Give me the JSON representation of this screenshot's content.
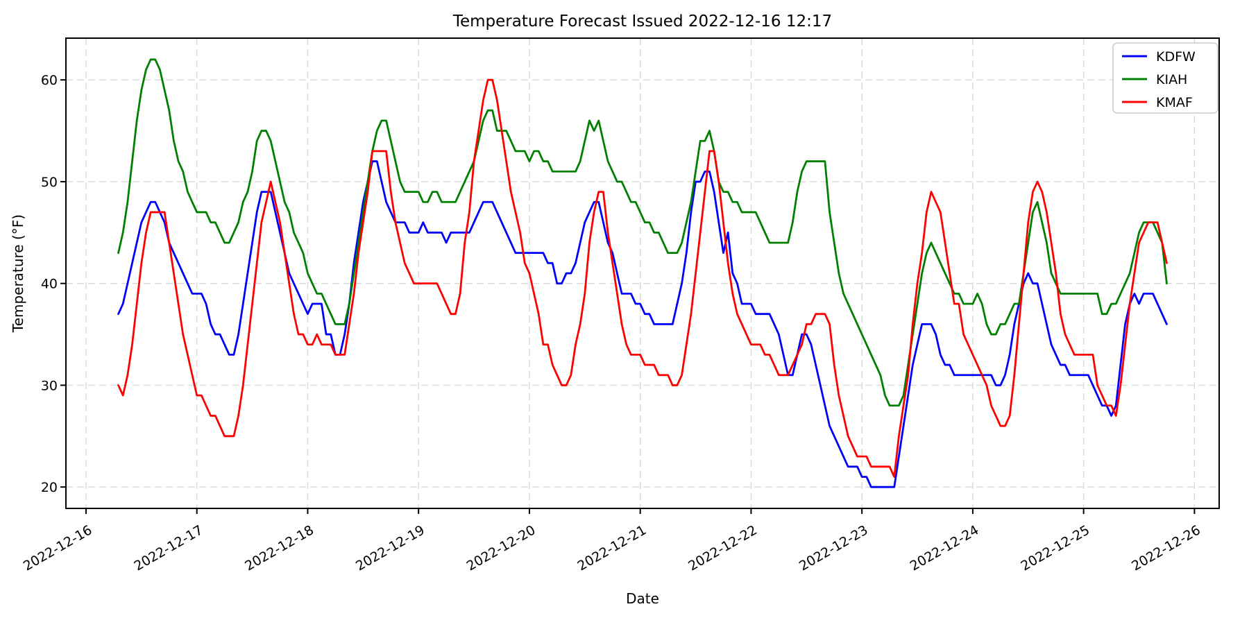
{
  "title": "Temperature Forecast Issued 2022-12-16 12:17",
  "chart_data": {
    "type": "line",
    "title": "Temperature Forecast Issued 2022-12-16 12:17",
    "xlabel": "Date",
    "ylabel": "Temperature (°F)",
    "grid": true,
    "legend_position": "upper right",
    "x_start": "2022-12-16 07:00",
    "x_step_hours": 1,
    "x_end": "2022-12-25 18:00",
    "xlim_hours_from_start": [
      -11.35,
      238.35
    ],
    "ylim": [
      17.9,
      64.1
    ],
    "yticks": [
      20,
      30,
      40,
      50,
      60
    ],
    "x_tick_first_index": -7,
    "x_tick_interval_hours": 24,
    "x_tick_labels": [
      "2022-12-16",
      "2022-12-17",
      "2022-12-18",
      "2022-12-19",
      "2022-12-20",
      "2022-12-21",
      "2022-12-22",
      "2022-12-23",
      "2022-12-24",
      "2022-12-25",
      "2022-12-26"
    ],
    "series": [
      {
        "name": "KDFW",
        "color": "#0000ff",
        "values": [
          37,
          38,
          40,
          42,
          44,
          46,
          47,
          48,
          48,
          47,
          46,
          44,
          43,
          42,
          41,
          40,
          39,
          39,
          39,
          38,
          36,
          35,
          35,
          34,
          33,
          33,
          35,
          38,
          41,
          44,
          47,
          49,
          49,
          49,
          47,
          45,
          43,
          41,
          40,
          39,
          38,
          37,
          38,
          38,
          38,
          35,
          35,
          33,
          33,
          35,
          38,
          42,
          45,
          48,
          50,
          52,
          52,
          50,
          48,
          47,
          46,
          46,
          46,
          45,
          45,
          45,
          46,
          45,
          45,
          45,
          45,
          44,
          45,
          45,
          45,
          45,
          45,
          46,
          47,
          48,
          48,
          48,
          47,
          46,
          45,
          44,
          43,
          43,
          43,
          43,
          43,
          43,
          43,
          42,
          42,
          40,
          40,
          41,
          41,
          42,
          44,
          46,
          47,
          48,
          48,
          46,
          44,
          43,
          41,
          39,
          39,
          39,
          38,
          38,
          37,
          37,
          36,
          36,
          36,
          36,
          36,
          38,
          40,
          43,
          47,
          50,
          50,
          51,
          51,
          49,
          46,
          43,
          45,
          41,
          40,
          38,
          38,
          38,
          37,
          37,
          37,
          37,
          36,
          35,
          33,
          31,
          31,
          33,
          35,
          35,
          34,
          32,
          30,
          28,
          26,
          25,
          24,
          23,
          22,
          22,
          22,
          21,
          21,
          20,
          20,
          20,
          20,
          20,
          20,
          23,
          26,
          29,
          32,
          34,
          36,
          36,
          36,
          35,
          33,
          32,
          32,
          31,
          31,
          31,
          31,
          31,
          31,
          31,
          31,
          31,
          30,
          30,
          31,
          33,
          36,
          38,
          40,
          41,
          40,
          40,
          38,
          36,
          34,
          33,
          32,
          32,
          31,
          31,
          31,
          31,
          31,
          30,
          29,
          28,
          28,
          27,
          28,
          32,
          36,
          38,
          39,
          38,
          39,
          39,
          39,
          38,
          37,
          36
        ]
      },
      {
        "name": "KIAH",
        "color": "#008000",
        "values": [
          43,
          45,
          48,
          52,
          56,
          59,
          61,
          62,
          62,
          61,
          59,
          57,
          54,
          52,
          51,
          49,
          48,
          47,
          47,
          47,
          46,
          46,
          45,
          44,
          44,
          45,
          46,
          48,
          49,
          51,
          54,
          55,
          55,
          54,
          52,
          50,
          48,
          47,
          45,
          44,
          43,
          41,
          40,
          39,
          39,
          38,
          37,
          36,
          36,
          36,
          38,
          41,
          44,
          47,
          50,
          53,
          55,
          56,
          56,
          54,
          52,
          50,
          49,
          49,
          49,
          49,
          48,
          48,
          49,
          49,
          48,
          48,
          48,
          48,
          49,
          50,
          51,
          52,
          54,
          56,
          57,
          57,
          55,
          55,
          55,
          54,
          53,
          53,
          53,
          52,
          53,
          53,
          52,
          52,
          51,
          51,
          51,
          51,
          51,
          51,
          52,
          54,
          56,
          55,
          56,
          54,
          52,
          51,
          50,
          50,
          49,
          48,
          48,
          47,
          46,
          46,
          45,
          45,
          44,
          43,
          43,
          43,
          44,
          46,
          48,
          51,
          54,
          54,
          55,
          53,
          50,
          49,
          49,
          48,
          48,
          47,
          47,
          47,
          47,
          46,
          45,
          44,
          44,
          44,
          44,
          44,
          46,
          49,
          51,
          52,
          52,
          52,
          52,
          52,
          47,
          44,
          41,
          39,
          38,
          37,
          36,
          35,
          34,
          33,
          32,
          31,
          29,
          28,
          28,
          28,
          29,
          32,
          35,
          38,
          41,
          43,
          44,
          43,
          42,
          41,
          40,
          39,
          39,
          38,
          38,
          38,
          39,
          38,
          36,
          35,
          35,
          36,
          36,
          37,
          38,
          38,
          41,
          44,
          47,
          48,
          46,
          44,
          41,
          40,
          39,
          39,
          39,
          39,
          39,
          39,
          39,
          39,
          39,
          37,
          37,
          38,
          38,
          39,
          40,
          41,
          43,
          45,
          46,
          46,
          46,
          45,
          44,
          40
        ]
      },
      {
        "name": "KMAF",
        "color": "#ff0000",
        "values": [
          30,
          29,
          31,
          34,
          38,
          42,
          45,
          47,
          47,
          47,
          47,
          44,
          41,
          38,
          35,
          33,
          31,
          29,
          29,
          28,
          27,
          27,
          26,
          25,
          25,
          25,
          27,
          30,
          34,
          38,
          42,
          46,
          48,
          50,
          48,
          46,
          43,
          40,
          37,
          35,
          35,
          34,
          34,
          35,
          34,
          34,
          34,
          33,
          33,
          33,
          36,
          39,
          43,
          46,
          49,
          53,
          53,
          53,
          53,
          49,
          46,
          44,
          42,
          41,
          40,
          40,
          40,
          40,
          40,
          40,
          39,
          38,
          37,
          37,
          39,
          44,
          47,
          52,
          55,
          58,
          60,
          60,
          58,
          55,
          52,
          49,
          47,
          45,
          42,
          41,
          39,
          37,
          34,
          34,
          32,
          31,
          30,
          30,
          31,
          34,
          36,
          39,
          44,
          47,
          49,
          49,
          45,
          42,
          39,
          36,
          34,
          33,
          33,
          33,
          32,
          32,
          32,
          31,
          31,
          31,
          30,
          30,
          31,
          34,
          37,
          41,
          45,
          49,
          53,
          53,
          50,
          46,
          42,
          39,
          37,
          36,
          35,
          34,
          34,
          34,
          33,
          33,
          32,
          31,
          31,
          31,
          32,
          33,
          34,
          36,
          36,
          37,
          37,
          37,
          36,
          32,
          29,
          27,
          25,
          24,
          23,
          23,
          23,
          22,
          22,
          22,
          22,
          22,
          21,
          25,
          28,
          31,
          36,
          40,
          43,
          47,
          49,
          48,
          47,
          44,
          41,
          38,
          38,
          35,
          34,
          33,
          32,
          31,
          30,
          28,
          27,
          26,
          26,
          27,
          31,
          36,
          41,
          46,
          49,
          50,
          49,
          47,
          44,
          41,
          37,
          35,
          34,
          33,
          33,
          33,
          33,
          33,
          30,
          29,
          28,
          28,
          27,
          30,
          34,
          38,
          41,
          44,
          45,
          46,
          46,
          46,
          44,
          42
        ]
      }
    ],
    "style": {
      "grid_color": "#d9d9d9",
      "spine_color": "#000000",
      "background": "#ffffff",
      "line_width": 2.8
    }
  }
}
